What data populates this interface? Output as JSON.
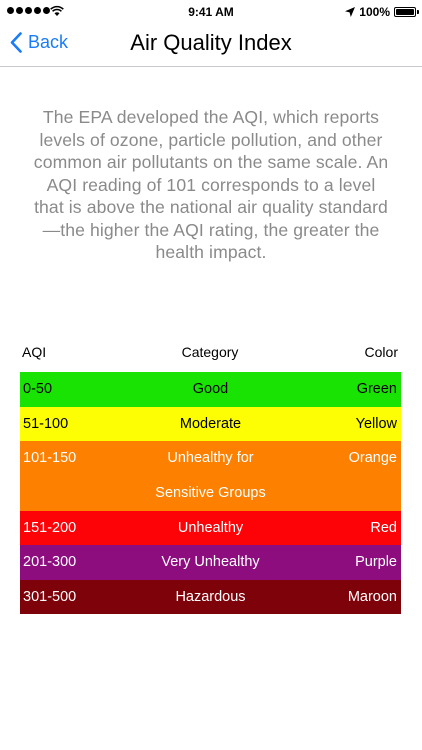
{
  "status_bar": {
    "time": "9:41 AM",
    "battery": "100%",
    "signal_bars": 5,
    "battery_level": 1.0
  },
  "nav": {
    "back_label": "Back",
    "title": "Air Quality Index"
  },
  "intro_text": "The EPA developed the AQI, which reports levels of ozone, particle pollution, and other common air pollutants on the same scale. An AQI reading of 101 corresponds to a level that is above the national air quality standard—the higher the AQI rating, the greater the health impact.",
  "table": {
    "headers": {
      "aqi": "AQI",
      "category": "Category",
      "color": "Color"
    },
    "rows": [
      {
        "aqi": "0-50",
        "category": "Good",
        "category_lines": [
          "Good"
        ],
        "color": "Green",
        "bg": "#19e303",
        "text_color": "#000000"
      },
      {
        "aqi": "51-100",
        "category": "Moderate",
        "category_lines": [
          "Moderate"
        ],
        "color": "Yellow",
        "bg": "#fdfd03",
        "text_color": "#000000"
      },
      {
        "aqi": "101-150",
        "category": "Unhealthy for Sensitive Groups",
        "category_lines": [
          "Unhealthy for",
          "Sensitive Groups"
        ],
        "color": "Orange",
        "bg": "#fe8000",
        "text_color": "#ffffff"
      },
      {
        "aqi": "151-200",
        "category": "Unhealthy",
        "category_lines": [
          "Unhealthy"
        ],
        "color": "Red",
        "bg": "#fd0206",
        "text_color": "#ffffff"
      },
      {
        "aqi": "201-300",
        "category": "Very Unhealthy",
        "category_lines": [
          "Very Unhealthy"
        ],
        "color": "Purple",
        "bg": "#8d0d7f",
        "text_color": "#ffffff"
      },
      {
        "aqi": "301-500",
        "category": "Hazardous",
        "category_lines": [
          "Hazardous"
        ],
        "color": "Maroon",
        "bg": "#7e0209",
        "text_color": "#ffffff"
      }
    ]
  },
  "colors": {
    "accent": "#1a7cf6",
    "intro_text": "#8a8a8a",
    "nav_divider": "#c8c7cc"
  },
  "icons": {
    "back": "chevron-left-icon",
    "wifi": "wifi-icon",
    "location": "location-arrow-icon",
    "battery": "battery-icon"
  }
}
